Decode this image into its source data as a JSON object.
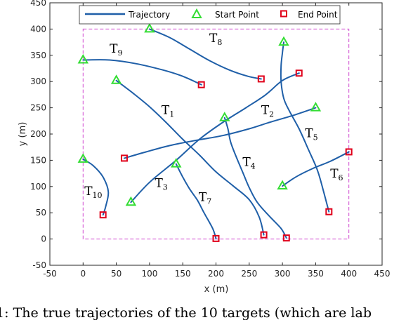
{
  "chart_data": {
    "type": "line",
    "xlabel": "x (m)",
    "ylabel": "y (m)",
    "xlim": [
      -50,
      450
    ],
    "ylim": [
      -50,
      450
    ],
    "xticks": [
      -50,
      0,
      50,
      100,
      150,
      200,
      250,
      300,
      350,
      400,
      450
    ],
    "yticks": [
      -50,
      0,
      50,
      100,
      150,
      200,
      250,
      300,
      350,
      400,
      450
    ],
    "legend_placement": "top",
    "legend": [
      {
        "label": "Trajectory",
        "kind": "line"
      },
      {
        "label": "Start Point",
        "kind": "triangle"
      },
      {
        "label": "End Point",
        "kind": "square"
      }
    ],
    "surveillance_box": {
      "x": [
        0,
        400
      ],
      "y": [
        0,
        400
      ],
      "color": "#d04bd0"
    },
    "colors": {
      "trajectory": "#1f5fa8",
      "start": "#33dd33",
      "end": "#e0001a"
    },
    "trajectories": [
      {
        "name": "T",
        "sub": "1",
        "label_at": [
          118,
          238
        ],
        "points": [
          [
            50,
            302
          ],
          [
            75,
            278
          ],
          [
            100,
            252
          ],
          [
            125,
            222
          ],
          [
            150,
            190
          ],
          [
            175,
            160
          ],
          [
            200,
            128
          ],
          [
            225,
            102
          ],
          [
            250,
            75
          ],
          [
            265,
            42
          ],
          [
            272,
            8
          ]
        ]
      },
      {
        "name": "T",
        "sub": "2",
        "label_at": [
          268,
          238
        ],
        "points": [
          [
            350,
            250
          ],
          [
            320,
            237
          ],
          [
            280,
            222
          ],
          [
            250,
            210
          ],
          [
            210,
            197
          ],
          [
            170,
            188
          ],
          [
            130,
            178
          ],
          [
            95,
            166
          ],
          [
            62,
            154
          ]
        ]
      },
      {
        "name": "T",
        "sub": "3",
        "label_at": [
          108,
          99
        ],
        "points": [
          [
            72,
            70
          ],
          [
            100,
            108
          ],
          [
            140,
            150
          ],
          [
            175,
            190
          ],
          [
            210,
            222
          ],
          [
            245,
            250
          ],
          [
            275,
            275
          ],
          [
            300,
            302
          ],
          [
            325,
            316
          ]
        ]
      },
      {
        "name": "T",
        "sub": "4",
        "label_at": [
          240,
          139
        ],
        "points": [
          [
            213,
            231
          ],
          [
            218,
            210
          ],
          [
            222,
            185
          ],
          [
            230,
            158
          ],
          [
            240,
            128
          ],
          [
            250,
            98
          ],
          [
            262,
            70
          ],
          [
            280,
            44
          ],
          [
            298,
            20
          ],
          [
            306,
            2
          ]
        ]
      },
      {
        "name": "T",
        "sub": "5",
        "label_at": [
          334,
          194
        ],
        "points": [
          [
            302,
            375
          ],
          [
            300,
            355
          ],
          [
            298,
            330
          ],
          [
            298,
            300
          ],
          [
            302,
            268
          ],
          [
            310,
            245
          ],
          [
            325,
            210
          ],
          [
            340,
            168
          ],
          [
            353,
            130
          ],
          [
            362,
            90
          ],
          [
            370,
            52
          ]
        ]
      },
      {
        "name": "T",
        "sub": "6",
        "label_at": [
          372,
          117
        ],
        "points": [
          [
            300,
            101
          ],
          [
            320,
            118
          ],
          [
            345,
            134
          ],
          [
            372,
            148
          ],
          [
            400,
            166
          ]
        ]
      },
      {
        "name": "T",
        "sub": "7",
        "label_at": [
          174,
          72
        ],
        "points": [
          [
            140,
            143
          ],
          [
            150,
            118
          ],
          [
            160,
            96
          ],
          [
            172,
            74
          ],
          [
            182,
            50
          ],
          [
            195,
            20
          ],
          [
            200,
            1
          ]
        ]
      },
      {
        "name": "T",
        "sub": "8",
        "label_at": [
          190,
          375
        ],
        "points": [
          [
            100,
            400
          ],
          [
            130,
            384
          ],
          [
            160,
            362
          ],
          [
            190,
            340
          ],
          [
            220,
            322
          ],
          [
            248,
            310
          ],
          [
            268,
            305
          ]
        ]
      },
      {
        "name": "T",
        "sub": "9",
        "label_at": [
          40,
          355
        ],
        "points": [
          [
            0,
            341
          ],
          [
            40,
            341
          ],
          [
            80,
            334
          ],
          [
            120,
            322
          ],
          [
            150,
            310
          ],
          [
            178,
            294
          ]
        ]
      },
      {
        "name": "T",
        "sub": "10",
        "label_at": [
          2,
          84
        ],
        "points": [
          [
            0,
            152
          ],
          [
            15,
            140
          ],
          [
            30,
            118
          ],
          [
            38,
            90
          ],
          [
            34,
            62
          ],
          [
            30,
            46
          ]
        ]
      }
    ]
  },
  "caption": "1: The true trajectories of the 10 targets (which are lab"
}
